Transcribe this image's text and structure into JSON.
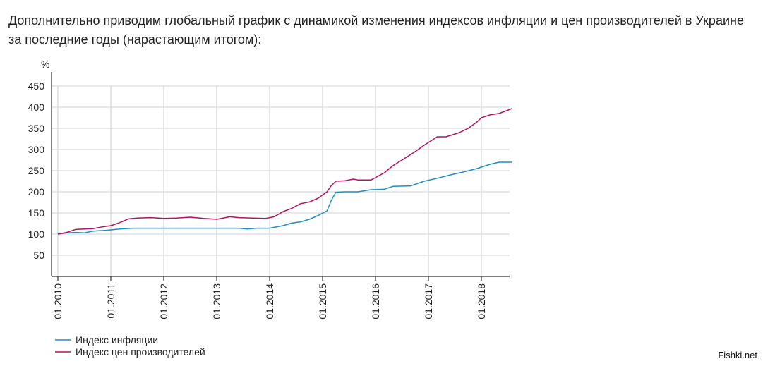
{
  "intro_text": "Дополнительно приводим глобальный график с динамикой изменения индексов инфляции и цен производителей в Украине за последние годы (нарастающим итогом):",
  "watermark": "Fishki.net",
  "chart_data": {
    "type": "line",
    "title": "",
    "xlabel": "",
    "ylabel": "%",
    "ylim": [
      0,
      450
    ],
    "xlim": [
      "2009-12",
      "2018-08"
    ],
    "yticks": [
      50,
      100,
      150,
      200,
      250,
      300,
      350,
      400,
      450
    ],
    "xticks": [
      "01.2010",
      "01.2011",
      "01.2012",
      "01.2013",
      "01.2014",
      "01.2015",
      "01.2016",
      "01.2017",
      "01.2018"
    ],
    "grid": true,
    "legend_position": "bottom-left",
    "series": [
      {
        "name": "Индекс инфляции",
        "color": "#1f8fbf",
        "points": [
          [
            "2010-01",
            100
          ],
          [
            "2010-03",
            103
          ],
          [
            "2010-05",
            104
          ],
          [
            "2010-07",
            103
          ],
          [
            "2010-09",
            107
          ],
          [
            "2010-12",
            109
          ],
          [
            "2011-03",
            112
          ],
          [
            "2011-06",
            114
          ],
          [
            "2012-01",
            114
          ],
          [
            "2013-01",
            114
          ],
          [
            "2013-06",
            114
          ],
          [
            "2013-08",
            112
          ],
          [
            "2013-10",
            114
          ],
          [
            "2014-01",
            114
          ],
          [
            "2014-04",
            120
          ],
          [
            "2014-06",
            126
          ],
          [
            "2014-08",
            129
          ],
          [
            "2014-10",
            135
          ],
          [
            "2014-12",
            144
          ],
          [
            "2015-02",
            155
          ],
          [
            "2015-03",
            180
          ],
          [
            "2015-04",
            199
          ],
          [
            "2015-06",
            200
          ],
          [
            "2015-09",
            200
          ],
          [
            "2015-12",
            205
          ],
          [
            "2016-03",
            206
          ],
          [
            "2016-05",
            213
          ],
          [
            "2016-09",
            214
          ],
          [
            "2016-12",
            225
          ],
          [
            "2017-03",
            232
          ],
          [
            "2017-06",
            240
          ],
          [
            "2017-09",
            247
          ],
          [
            "2017-12",
            255
          ],
          [
            "2018-03",
            265
          ],
          [
            "2018-05",
            270
          ],
          [
            "2018-08",
            270
          ]
        ]
      },
      {
        "name": "Индекс цен производителей",
        "color": "#b3125f",
        "points": [
          [
            "2010-01",
            100
          ],
          [
            "2010-03",
            104
          ],
          [
            "2010-05",
            111
          ],
          [
            "2010-07",
            112
          ],
          [
            "2010-09",
            113
          ],
          [
            "2010-11",
            117
          ],
          [
            "2011-01",
            120
          ],
          [
            "2011-03",
            127
          ],
          [
            "2011-05",
            136
          ],
          [
            "2011-07",
            138
          ],
          [
            "2011-10",
            139
          ],
          [
            "2012-01",
            137
          ],
          [
            "2012-04",
            138
          ],
          [
            "2012-07",
            140
          ],
          [
            "2012-10",
            137
          ],
          [
            "2013-01",
            135
          ],
          [
            "2013-04",
            141
          ],
          [
            "2013-06",
            139
          ],
          [
            "2013-09",
            138
          ],
          [
            "2013-12",
            137
          ],
          [
            "2014-02",
            141
          ],
          [
            "2014-04",
            153
          ],
          [
            "2014-06",
            161
          ],
          [
            "2014-08",
            172
          ],
          [
            "2014-10",
            176
          ],
          [
            "2014-12",
            185
          ],
          [
            "2015-02",
            200
          ],
          [
            "2015-03",
            215
          ],
          [
            "2015-04",
            225
          ],
          [
            "2015-06",
            226
          ],
          [
            "2015-08",
            230
          ],
          [
            "2015-09",
            228
          ],
          [
            "2015-12",
            228
          ],
          [
            "2016-03",
            245
          ],
          [
            "2016-05",
            262
          ],
          [
            "2016-07",
            275
          ],
          [
            "2016-10",
            295
          ],
          [
            "2016-12",
            310
          ],
          [
            "2017-03",
            330
          ],
          [
            "2017-05",
            330
          ],
          [
            "2017-08",
            340
          ],
          [
            "2017-10",
            350
          ],
          [
            "2017-12",
            365
          ],
          [
            "2018-01",
            375
          ],
          [
            "2018-03",
            382
          ],
          [
            "2018-05",
            385
          ],
          [
            "2018-08",
            397
          ]
        ]
      }
    ]
  }
}
